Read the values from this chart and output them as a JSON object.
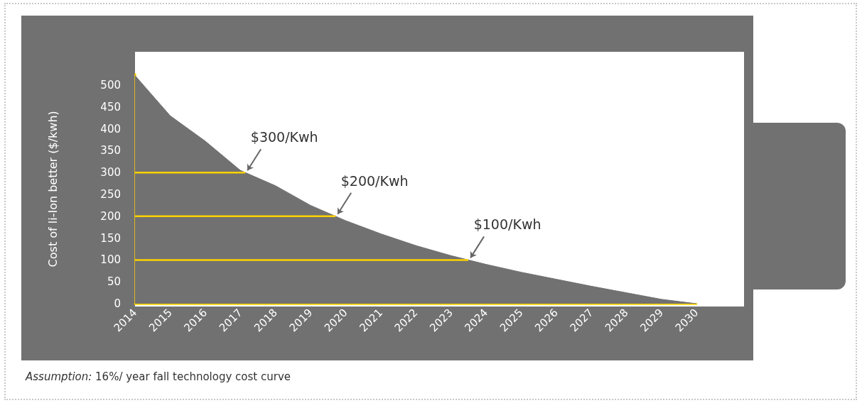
{
  "chart_data": {
    "type": "area",
    "ylabel": "Cost of li-Ion better ($/kwh)",
    "x": [
      2014,
      2015,
      2016,
      2017,
      2018,
      2019,
      2020,
      2021,
      2022,
      2023,
      2024,
      2025,
      2026,
      2027,
      2028,
      2029,
      2030
    ],
    "series": [
      {
        "color": "#717171",
        "values": [
          522,
          430,
          372,
          305,
          270,
          225,
          190,
          160,
          133,
          110,
          90,
          72,
          56,
          40,
          25,
          10,
          0
        ]
      }
    ],
    "xlim": [
      2014,
      2030
    ],
    "xticks": [
      2014,
      2015,
      2016,
      2017,
      2018,
      2019,
      2020,
      2021,
      2022,
      2023,
      2024,
      2025,
      2026,
      2027,
      2028,
      2029,
      2030
    ],
    "ylim": [
      0,
      525
    ],
    "yticks": [
      0,
      50,
      100,
      150,
      200,
      250,
      300,
      350,
      400,
      450,
      500
    ],
    "ref_lines": [
      {
        "axis": "y",
        "value": 300,
        "label": "$300/Kwh",
        "color": "#ffd200"
      },
      {
        "axis": "y",
        "value": 200,
        "label": "$200/Kwh",
        "color": "#ffd200"
      },
      {
        "axis": "y",
        "value": 100,
        "label": "$100/Kwh",
        "color": "#ffd200"
      }
    ],
    "annotations": [
      "Assumption: 16%/ year fall technology cost curve"
    ],
    "grid": false
  }
}
